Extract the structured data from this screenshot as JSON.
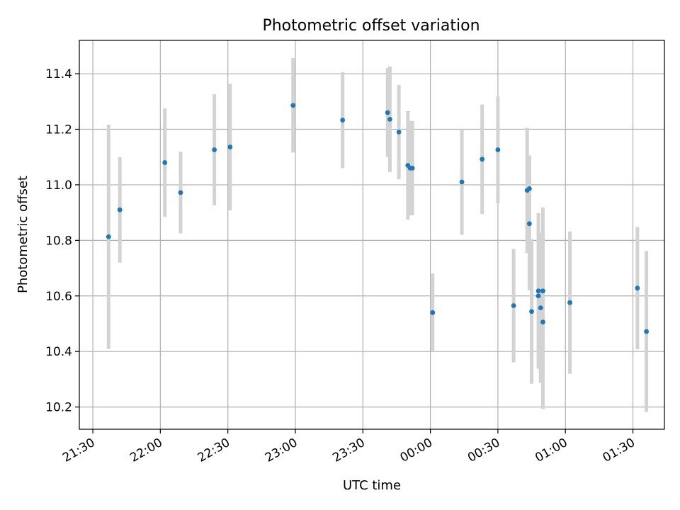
{
  "chart_data": {
    "type": "scatter",
    "title": "Photometric offset variation",
    "xlabel": "UTC time",
    "ylabel": "Photometric offset",
    "x_ticks": [
      "21:30",
      "22:00",
      "22:30",
      "23:00",
      "23:30",
      "00:00",
      "00:30",
      "01:00",
      "01:30"
    ],
    "y_ticks": [
      "10.2",
      "10.4",
      "10.6",
      "10.8",
      "11.0",
      "11.2",
      "11.4"
    ],
    "y_tick_values": [
      10.2,
      10.4,
      10.6,
      10.8,
      11.0,
      11.2,
      11.4
    ],
    "xlim": [
      "21:24",
      "01:44"
    ],
    "ylim": [
      10.12,
      11.52
    ],
    "grid": true,
    "marker_color": "#1f77b4",
    "errorbar_color": "#d3d3d3",
    "series": [
      {
        "points": [
          {
            "x": "21:37",
            "y": 10.813,
            "yerr": 0.404
          },
          {
            "x": "21:42",
            "y": 10.91,
            "yerr": 0.19
          },
          {
            "x": "22:02",
            "y": 11.08,
            "yerr": 0.195
          },
          {
            "x": "22:09",
            "y": 10.972,
            "yerr": 0.147
          },
          {
            "x": "22:24",
            "y": 11.126,
            "yerr": 0.2
          },
          {
            "x": "22:31",
            "y": 11.136,
            "yerr": 0.228
          },
          {
            "x": "22:59",
            "y": 11.286,
            "yerr": 0.17
          },
          {
            "x": "23:21",
            "y": 11.233,
            "yerr": 0.173
          },
          {
            "x": "23:41",
            "y": 11.26,
            "yerr": 0.16
          },
          {
            "x": "23:42",
            "y": 11.236,
            "yerr": 0.19
          },
          {
            "x": "23:46",
            "y": 11.19,
            "yerr": 0.17
          },
          {
            "x": "23:50",
            "y": 11.07,
            "yerr": 0.195
          },
          {
            "x": "23:51",
            "y": 11.06,
            "yerr": 0.17
          },
          {
            "x": "23:52",
            "y": 11.06,
            "yerr": 0.17
          },
          {
            "x": "00:01",
            "y": 10.54,
            "yerr": 0.14
          },
          {
            "x": "00:14",
            "y": 11.01,
            "yerr": 0.19
          },
          {
            "x": "00:23",
            "y": 11.092,
            "yerr": 0.197
          },
          {
            "x": "00:30",
            "y": 11.126,
            "yerr": 0.192
          },
          {
            "x": "00:37",
            "y": 10.565,
            "yerr": 0.204
          },
          {
            "x": "00:43",
            "y": 10.98,
            "yerr": 0.225
          },
          {
            "x": "00:44",
            "y": 10.986,
            "yerr": 0.12
          },
          {
            "x": "00:44",
            "y": 10.86,
            "yerr": 0.24
          },
          {
            "x": "00:45",
            "y": 10.544,
            "yerr": 0.26
          },
          {
            "x": "00:48",
            "y": 10.618,
            "yerr": 0.28
          },
          {
            "x": "00:48",
            "y": 10.6,
            "yerr": 0.26
          },
          {
            "x": "00:49",
            "y": 10.557,
            "yerr": 0.27
          },
          {
            "x": "00:50",
            "y": 10.618,
            "yerr": 0.3
          },
          {
            "x": "00:50",
            "y": 10.506,
            "yerr": 0.313
          },
          {
            "x": "01:02",
            "y": 10.576,
            "yerr": 0.256
          },
          {
            "x": "01:32",
            "y": 10.628,
            "yerr": 0.22
          },
          {
            "x": "01:36",
            "y": 10.472,
            "yerr": 0.29
          }
        ]
      }
    ]
  }
}
